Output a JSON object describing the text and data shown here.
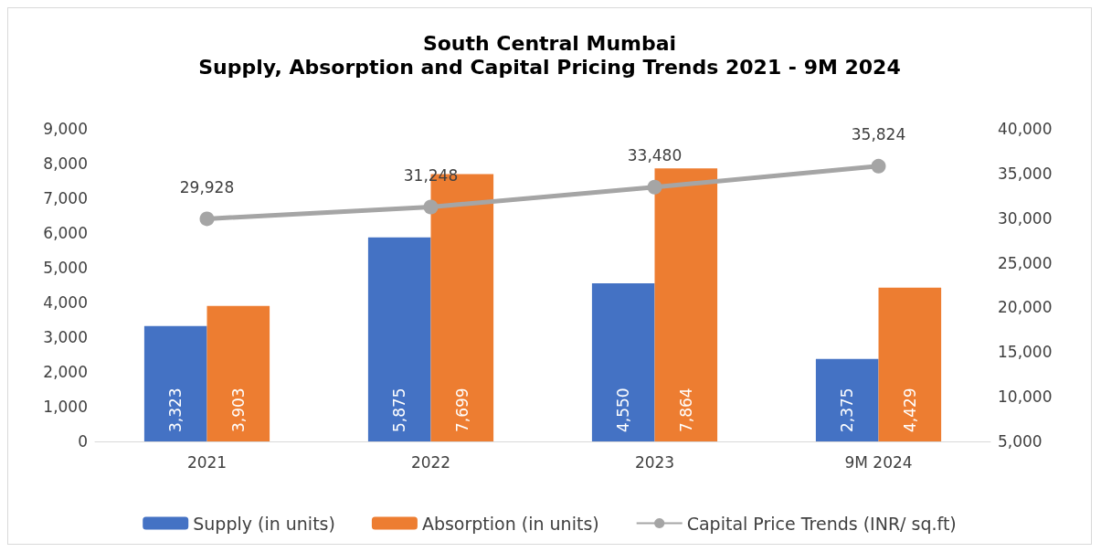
{
  "chart_data": {
    "type": "bar",
    "title": "South Central Mumbai",
    "subtitle": "Supply, Absorption and Capital Pricing Trends 2021 - 9M 2024",
    "categories": [
      "2021",
      "2022",
      "2023",
      "9M 2024"
    ],
    "series": [
      {
        "name": "Supply (in units)",
        "color": "#4472c4",
        "values": [
          3323,
          5875,
          4550,
          2375
        ],
        "value_labels": [
          "3,323",
          "5,875",
          "4,550",
          "2,375"
        ]
      },
      {
        "name": "Absorption (in units)",
        "color": "#ed7d31",
        "values": [
          3903,
          7699,
          7864,
          4429
        ],
        "value_labels": [
          "3,903",
          "7,699",
          "7,864",
          "4,429"
        ]
      },
      {
        "name": "Capital Price Trends (INR/ sq.ft)",
        "type": "line",
        "axis": "y2",
        "color": "#a5a5a5",
        "marker": "circle",
        "values": [
          29928,
          31248,
          33480,
          35824
        ],
        "value_labels": [
          "29,928",
          "31,248",
          "33,480",
          "35,824"
        ]
      }
    ],
    "ylim": [
      0,
      9000
    ],
    "yticks": [
      0,
      {
        "value": 1000,
        "label": "1,000"
      },
      {
        "value": 2000,
        "label": "2,000"
      },
      {
        "value": 3000,
        "label": "3,000"
      },
      {
        "value": 4000,
        "label": "4,000"
      },
      {
        "value": 5000,
        "label": "5,000"
      },
      {
        "value": 6000,
        "label": "6,000"
      },
      {
        "value": 7000,
        "label": "7,000"
      },
      {
        "value": 8000,
        "label": "8,000"
      },
      {
        "value": 9000,
        "label": "9,000"
      }
    ],
    "y2lim": [
      5000,
      40000
    ],
    "y2ticks": [
      {
        "value": 5000,
        "label": "5,000"
      },
      {
        "value": 10000,
        "label": "10,000"
      },
      {
        "value": 15000,
        "label": "15,000"
      },
      {
        "value": 20000,
        "label": "20,000"
      },
      {
        "value": 25000,
        "label": "25,000"
      },
      {
        "value": 30000,
        "label": "30,000"
      },
      {
        "value": 35000,
        "label": "35,000"
      },
      {
        "value": 40000,
        "label": "40,000"
      }
    ],
    "grid": false,
    "legend": "bottom"
  }
}
